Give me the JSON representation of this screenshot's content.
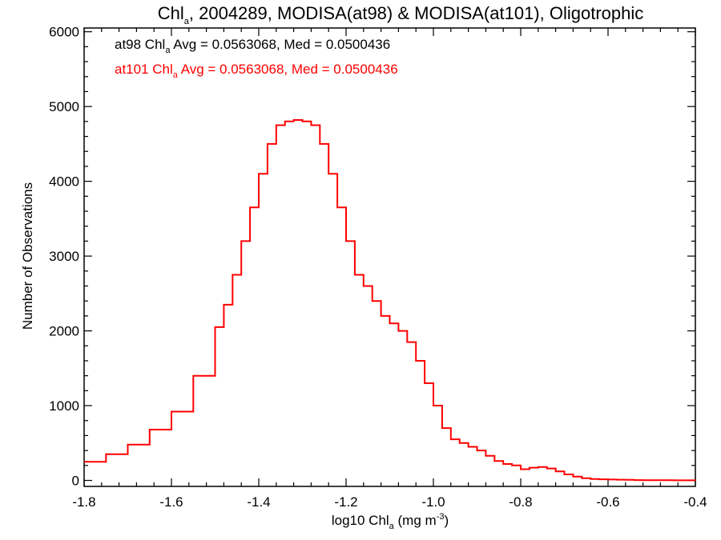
{
  "chart_data": {
    "type": "line",
    "title": {
      "pre": "Chl",
      "sub": "a",
      "post": ", 2004289, MODISA(at98) & MODISA(at101), Oligotrophic"
    },
    "xlabel": {
      "pre": "log10 Chl",
      "sub": "a",
      "mid": " (mg m",
      "sup": "-3",
      "post": ")"
    },
    "ylabel": "Number of Observations",
    "xlim": [
      -1.8,
      -0.4
    ],
    "ylim": [
      -80,
      6050
    ],
    "xticks": [
      -1.8,
      -1.6,
      -1.4,
      -1.2,
      -1.0,
      -0.8,
      -0.6,
      -0.4
    ],
    "xtick_labels": [
      "-1.8",
      "-1.6",
      "-1.4",
      "-1.2",
      "-1.0",
      "-0.8",
      "-0.6",
      "-0.4"
    ],
    "yticks": [
      0,
      1000,
      2000,
      3000,
      4000,
      5000,
      6000
    ],
    "ytick_labels": [
      "0",
      "1000",
      "2000",
      "3000",
      "4000",
      "5000",
      "6000"
    ],
    "annotations": [
      {
        "pre": "at98 Chl",
        "sub": "a",
        "post": " Avg = 0.0563068, Med = 0.0500436",
        "color": "#000000"
      },
      {
        "pre": "at101 Chl",
        "sub": "a",
        "post": " Avg = 0.0563068, Med = 0.0500436",
        "color": "#ff0000"
      }
    ],
    "series": [
      {
        "color": "#ff0000",
        "x": [
          -1.8,
          -1.75,
          -1.7,
          -1.65,
          -1.6,
          -1.55,
          -1.5,
          -1.48,
          -1.46,
          -1.44,
          -1.42,
          -1.4,
          -1.38,
          -1.36,
          -1.34,
          -1.32,
          -1.3,
          -1.28,
          -1.26,
          -1.24,
          -1.22,
          -1.2,
          -1.18,
          -1.16,
          -1.14,
          -1.12,
          -1.1,
          -1.08,
          -1.06,
          -1.04,
          -1.02,
          -1.0,
          -0.98,
          -0.96,
          -0.94,
          -0.92,
          -0.9,
          -0.88,
          -0.86,
          -0.84,
          -0.82,
          -0.8,
          -0.78,
          -0.76,
          -0.74,
          -0.72,
          -0.7,
          -0.68,
          -0.66,
          -0.64,
          -0.62,
          -0.6,
          -0.58,
          -0.56,
          -0.54,
          -0.52,
          -0.5,
          -0.45,
          -0.4
        ],
        "y": [
          250,
          350,
          480,
          680,
          920,
          1400,
          2050,
          2350,
          2750,
          3200,
          3650,
          4100,
          4500,
          4750,
          4800,
          4820,
          4800,
          4750,
          4500,
          4100,
          3650,
          3200,
          2750,
          2600,
          2400,
          2200,
          2100,
          2000,
          1850,
          1600,
          1300,
          1000,
          700,
          550,
          500,
          450,
          400,
          330,
          260,
          220,
          200,
          150,
          170,
          180,
          160,
          120,
          80,
          50,
          30,
          20,
          15,
          12,
          10,
          8,
          5,
          3,
          2,
          1,
          0
        ]
      }
    ]
  }
}
